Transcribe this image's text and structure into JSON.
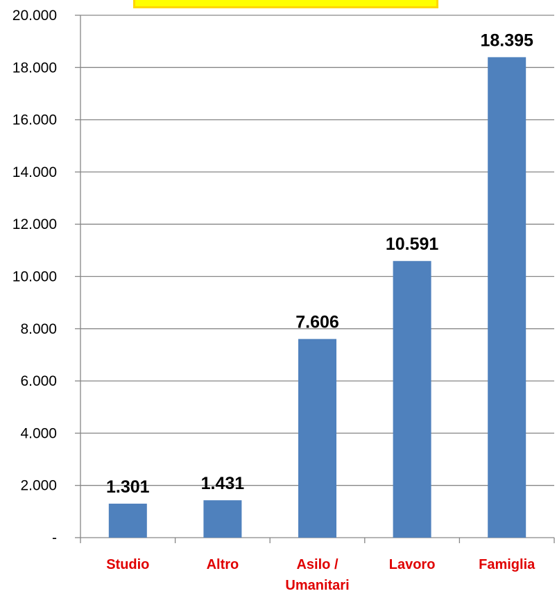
{
  "chart_data": {
    "type": "bar",
    "categories": [
      "Studio",
      "Altro",
      "Asilo / Umanitari",
      "Lavoro",
      "Famiglia"
    ],
    "category_lines": [
      [
        "Studio"
      ],
      [
        "Altro"
      ],
      [
        "Asilo /",
        "Umanitari"
      ],
      [
        "Lavoro"
      ],
      [
        "Famiglia"
      ]
    ],
    "values": [
      1301,
      1431,
      7606,
      10591,
      18395
    ],
    "data_labels": [
      "1.301",
      "1.431",
      "7.606",
      "10.591",
      "18.395"
    ],
    "ylim": [
      0,
      20000
    ],
    "yticks": [
      0,
      2000,
      4000,
      6000,
      8000,
      10000,
      12000,
      14000,
      16000,
      18000,
      20000
    ],
    "ytick_labels": [
      "-",
      "2.000",
      "4.000",
      "6.000",
      "8.000",
      "10.000",
      "12.000",
      "14.000",
      "16.000",
      "18.000",
      "20.000"
    ],
    "grid": true,
    "colors": {
      "bar": "#4f81bd",
      "category_label": "#e00000",
      "grid": "#868686",
      "highlight": "#ffff00"
    }
  }
}
